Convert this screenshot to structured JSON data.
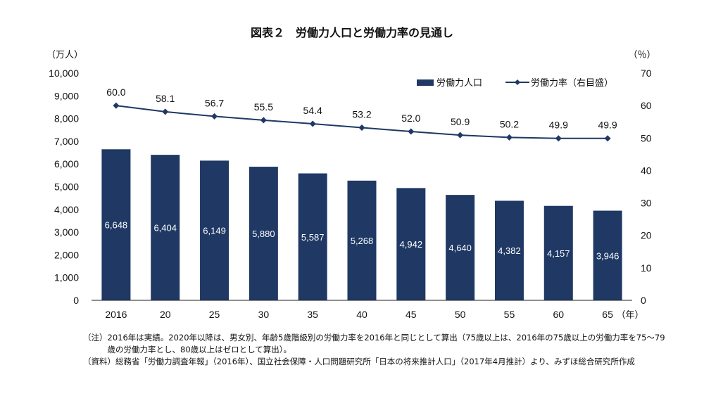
{
  "chart_data": {
    "type": "bar",
    "title": "図表２　労働力人口と労働力率の見通し",
    "left_axis_unit": "（万人）",
    "right_axis_unit": "（％）",
    "x_unit": "（年）",
    "categories": [
      "2016",
      "20",
      "25",
      "30",
      "35",
      "40",
      "45",
      "50",
      "55",
      "60",
      "65"
    ],
    "series": [
      {
        "name": "労働力人口",
        "type": "bar",
        "axis": "left",
        "color": "#1f3864",
        "values": [
          6648,
          6404,
          6149,
          5880,
          5587,
          5268,
          4942,
          4640,
          4382,
          4157,
          3946
        ],
        "labels": [
          "6,648",
          "6,404",
          "6,149",
          "5,880",
          "5,587",
          "5,268",
          "4,942",
          "4,640",
          "4,382",
          "4,157",
          "3,946"
        ]
      },
      {
        "name": "労働力率（右目盛）",
        "type": "line",
        "axis": "right",
        "color": "#1f3864",
        "values": [
          60.0,
          58.1,
          56.7,
          55.5,
          54.4,
          53.2,
          52.0,
          50.9,
          50.2,
          49.9,
          49.9
        ],
        "labels": [
          "60.0",
          "58.1",
          "56.7",
          "55.5",
          "54.4",
          "53.2",
          "52.0",
          "50.9",
          "50.2",
          "49.9",
          "49.9"
        ]
      }
    ],
    "y_left": {
      "range": [
        0,
        10000
      ],
      "ticks": [
        0,
        1000,
        2000,
        3000,
        4000,
        5000,
        6000,
        7000,
        8000,
        9000,
        10000
      ],
      "tick_labels": [
        "0",
        "1,000",
        "2,000",
        "3,000",
        "4,000",
        "5,000",
        "6,000",
        "7,000",
        "8,000",
        "9,000",
        "10,000"
      ]
    },
    "y_right": {
      "range": [
        0,
        70
      ],
      "ticks": [
        0,
        10,
        20,
        30,
        40,
        50,
        60,
        70
      ],
      "tick_labels": [
        "0",
        "10",
        "20",
        "30",
        "40",
        "50",
        "60",
        "70"
      ]
    },
    "grid": false,
    "legend_position": "top-right"
  },
  "notes": [
    {
      "tag": "（注）",
      "text": "2016年は実績。2020年以降は、男女別、年齢5歳階級別の労働力率を2016年と同じとして算出（75歳以上は、2016年の75歳以上の労働力率を75～79歳の労働力率とし、80歳以上はゼロとして算出）。"
    },
    {
      "tag": "（資料）",
      "text": "総務省「労働力調査年報」（2016年）、国立社会保障・人口問題研究所「日本の将来推計人口」（2017年4月推計）より、みずほ総合研究所作成"
    }
  ]
}
